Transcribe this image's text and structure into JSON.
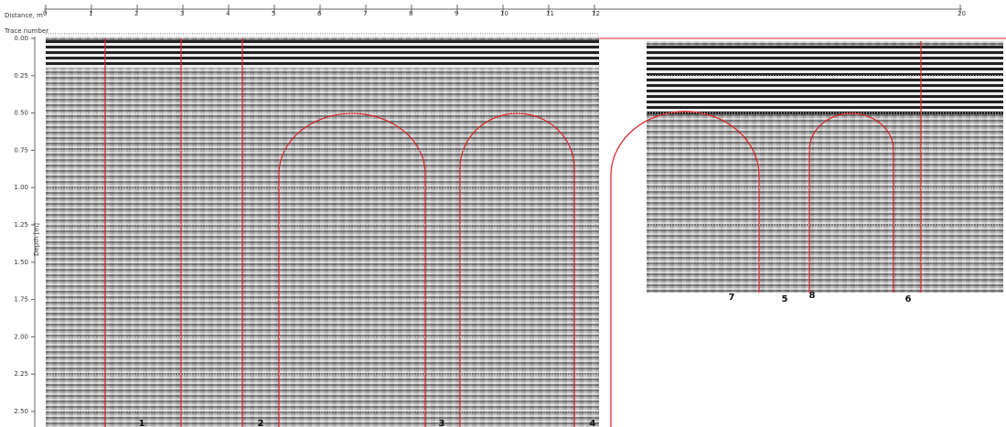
{
  "distance_axis": {
    "label": "Distance, m",
    "ticks": [
      "0",
      "1",
      "2",
      "3",
      "4",
      "5",
      "6",
      "7",
      "8",
      "9",
      "10",
      "11",
      "12",
      "20"
    ]
  },
  "trace_axis": {
    "label": "Trace number"
  },
  "depth_axis": {
    "label": "Depth [m]",
    "ticks": [
      "0.00",
      "0.25",
      "0.50",
      "0.75",
      "1.00",
      "1.25",
      "1.50",
      "1.75",
      "2.00",
      "2.25",
      "2.50"
    ]
  },
  "markers": [
    "1",
    "2",
    "3",
    "4",
    "7",
    "5",
    "8",
    "6"
  ]
}
